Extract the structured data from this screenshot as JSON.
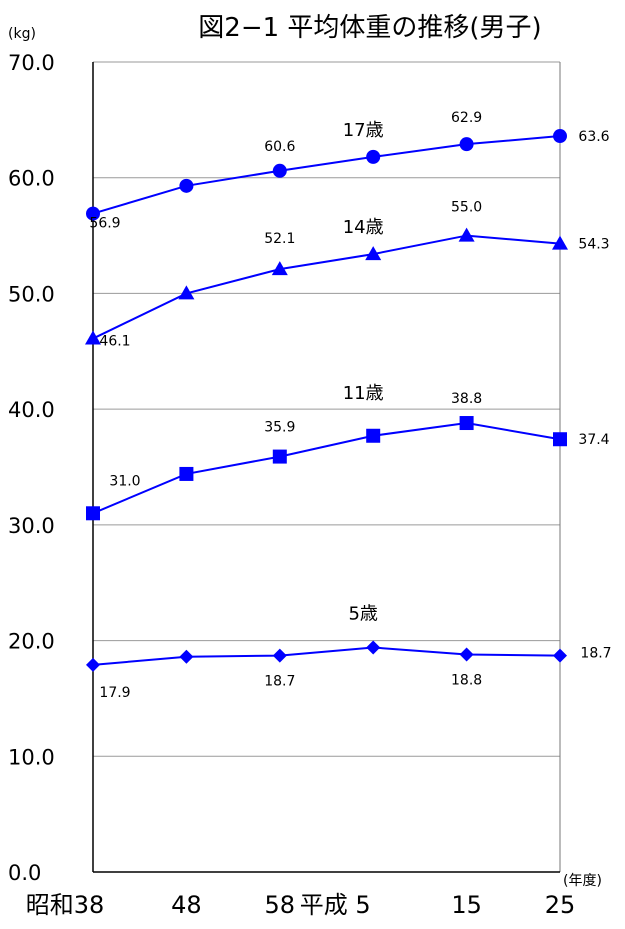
{
  "chart_data": {
    "type": "line",
    "title": "図2−1 平均体重の推移(男子)",
    "y_unit": "(kg)",
    "x_unit": "(年度)",
    "categories": [
      "昭和38",
      "48",
      "58",
      "平成 5",
      "15",
      "25"
    ],
    "ylim": [
      0,
      70
    ],
    "yticks": [
      "0.0",
      "10.0",
      "20.0",
      "30.0",
      "40.0",
      "50.0",
      "60.0",
      "70.0"
    ],
    "grid": true,
    "line_color": "#0000ff",
    "series": [
      {
        "name": "17歳",
        "marker": "circle",
        "values": [
          56.9,
          59.3,
          60.6,
          61.8,
          62.9,
          63.6
        ],
        "labels": [
          "56.9",
          "",
          "60.6",
          "",
          "62.9",
          "63.6"
        ]
      },
      {
        "name": "14歳",
        "marker": "triangle",
        "values": [
          46.1,
          50.0,
          52.1,
          53.4,
          55.0,
          54.3
        ],
        "labels": [
          "46.1",
          "",
          "52.1",
          "",
          "55.0",
          "54.3"
        ]
      },
      {
        "name": "11歳",
        "marker": "square",
        "values": [
          31.0,
          34.4,
          35.9,
          37.7,
          38.8,
          37.4
        ],
        "labels": [
          "31.0",
          "",
          "35.9",
          "",
          "38.8",
          "37.4"
        ]
      },
      {
        "name": "5歳",
        "marker": "diamond",
        "values": [
          17.9,
          18.6,
          18.7,
          19.4,
          18.8,
          18.7
        ],
        "labels": [
          "17.9",
          "",
          "18.7",
          "",
          "18.8",
          "18.7"
        ]
      }
    ]
  }
}
